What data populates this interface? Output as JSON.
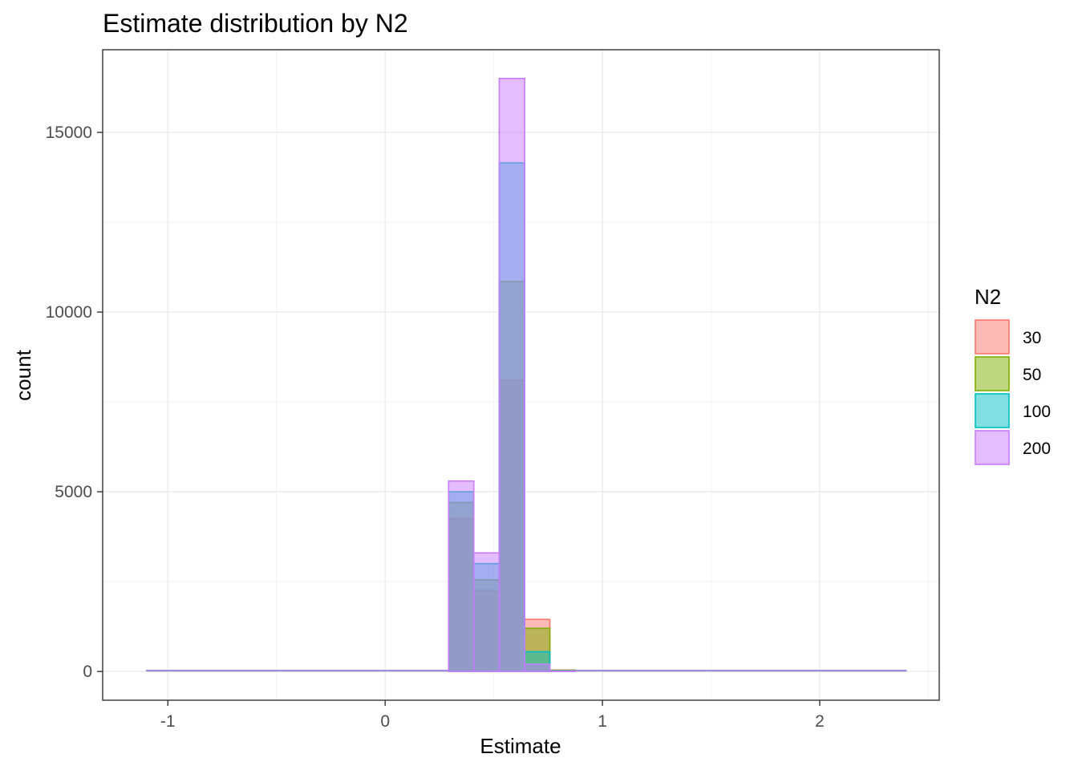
{
  "chart_data": {
    "type": "histogram",
    "title": "Estimate distribution by N2",
    "xlabel": "Estimate",
    "ylabel": "count",
    "xlim": [
      -1.3,
      2.55
    ],
    "ylim": [
      -800,
      17300
    ],
    "x_ticks": [
      -1,
      0,
      1,
      2
    ],
    "x_tick_labels": [
      "-1",
      "0",
      "1",
      "2"
    ],
    "y_ticks": [
      0,
      5000,
      10000,
      15000
    ],
    "y_tick_labels": [
      "0",
      "5000",
      "10000",
      "15000"
    ],
    "grid": true,
    "legend": {
      "title": "N2",
      "position": "right",
      "entries": [
        "30",
        "50",
        "100",
        "200"
      ]
    },
    "bin_width": 0.1167,
    "bins": [
      {
        "x0": 0.292,
        "x1": 0.408
      },
      {
        "x0": 0.408,
        "x1": 0.525
      },
      {
        "x0": 0.525,
        "x1": 0.642
      },
      {
        "x0": 0.642,
        "x1": 0.758
      },
      {
        "x0": 0.758,
        "x1": 0.875
      }
    ],
    "series": [
      {
        "name": "30",
        "color": "#F8766D",
        "fill": "#F8766D",
        "counts": [
          4250,
          2250,
          8100,
          1450,
          40
        ]
      },
      {
        "name": "50",
        "color": "#7CAE00",
        "fill": "#7CAE00",
        "counts": [
          4700,
          2550,
          10850,
          1200,
          30
        ]
      },
      {
        "name": "100",
        "color": "#00BFC4",
        "fill": "#00BFC4",
        "counts": [
          5000,
          3000,
          14150,
          550,
          20
        ]
      },
      {
        "name": "200",
        "color": "#C77CFF",
        "fill": "#C77CFF",
        "counts": [
          5300,
          3300,
          16500,
          200,
          10
        ]
      }
    ],
    "tail_ranges": [
      [
        -1.1,
        0.292
      ],
      [
        0.875,
        2.4
      ]
    ]
  }
}
